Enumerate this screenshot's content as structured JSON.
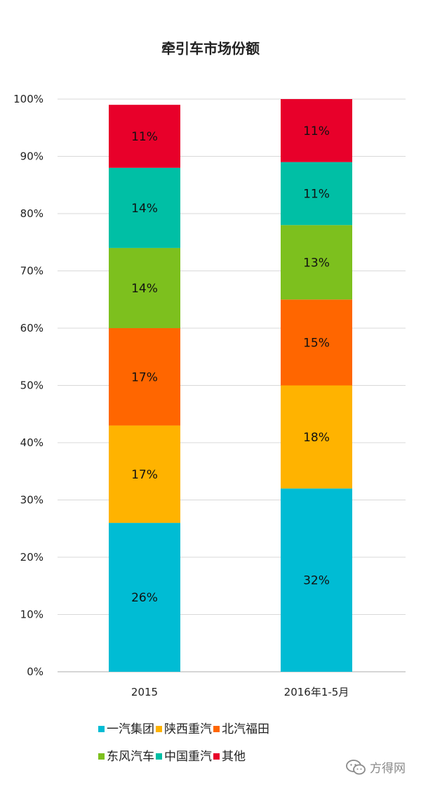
{
  "chart_data": {
    "type": "bar",
    "stacked": true,
    "title": "牵引车市场份额",
    "categories": [
      "2015",
      "2016年1-5月"
    ],
    "y_ticks": [
      "0%",
      "10%",
      "20%",
      "30%",
      "40%",
      "50%",
      "60%",
      "70%",
      "80%",
      "90%",
      "100%"
    ],
    "ylim": [
      0,
      100
    ],
    "grid": true,
    "legend_position": "bottom",
    "series": [
      {
        "name": "一汽集团",
        "color": "#00BCD4",
        "values": [
          26,
          32
        ],
        "labels": [
          "26%",
          "32%"
        ]
      },
      {
        "name": "陕西重汽",
        "color": "#FFB300",
        "values": [
          17,
          18
        ],
        "labels": [
          "17%",
          "18%"
        ]
      },
      {
        "name": "北汽福田",
        "color": "#FF6600",
        "values": [
          17,
          15
        ],
        "labels": [
          "17%",
          "15%"
        ]
      },
      {
        "name": "东风汽车",
        "color": "#7DC01E",
        "values": [
          14,
          13
        ],
        "labels": [
          "14%",
          "13%"
        ]
      },
      {
        "name": "中国重汽",
        "color": "#00BFA5",
        "values": [
          14,
          11
        ],
        "labels": [
          "14%",
          "11%"
        ]
      },
      {
        "name": "其他",
        "color": "#E8002A",
        "values": [
          11,
          11
        ],
        "labels": [
          "11%",
          "11%"
        ]
      }
    ]
  },
  "watermark": {
    "text": "方得网",
    "icon": "wechat-icon"
  }
}
